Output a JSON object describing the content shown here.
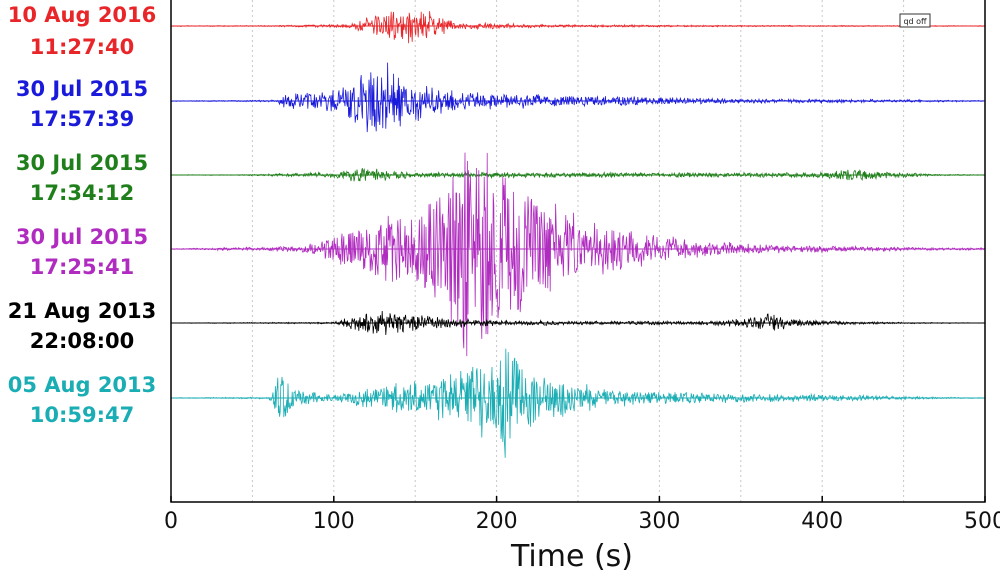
{
  "chart_data": {
    "type": "line",
    "xlabel": "Time (s)",
    "xlim": [
      0,
      500
    ],
    "x_ticks": [
      "0",
      "100",
      "200",
      "300",
      "400",
      "500"
    ],
    "grid": "vertical dotted at each 50 s",
    "annotation": "qd off",
    "series": [
      {
        "name_line1": "10 Aug 2016",
        "name_line2": "11:27:40",
        "color": "#e8262a",
        "envelope": [
          [
            0,
            0.4
          ],
          [
            60,
            0.6
          ],
          [
            110,
            2
          ],
          [
            125,
            14
          ],
          [
            145,
            23
          ],
          [
            160,
            16
          ],
          [
            175,
            4
          ],
          [
            230,
            1.5
          ],
          [
            350,
            0.8
          ],
          [
            500,
            0.4
          ]
        ]
      },
      {
        "name_line1": "30 Jul 2015",
        "name_line2": "17:57:39",
        "color": "#1a1adb",
        "envelope": [
          [
            0,
            0.3
          ],
          [
            65,
            1
          ],
          [
            70,
            8
          ],
          [
            100,
            12
          ],
          [
            120,
            35
          ],
          [
            130,
            44
          ],
          [
            150,
            22
          ],
          [
            180,
            10
          ],
          [
            250,
            6
          ],
          [
            350,
            2.5
          ],
          [
            450,
            1.5
          ],
          [
            500,
            0.5
          ]
        ]
      },
      {
        "name_line1": "30 Jul 2015",
        "name_line2": "17:34:12",
        "color": "#1f7f1a",
        "envelope": [
          [
            0,
            0.2
          ],
          [
            40,
            0.4
          ],
          [
            100,
            3
          ],
          [
            115,
            9
          ],
          [
            130,
            6
          ],
          [
            150,
            3
          ],
          [
            220,
            3
          ],
          [
            300,
            2.5
          ],
          [
            400,
            3
          ],
          [
            420,
            7
          ],
          [
            435,
            4
          ],
          [
            470,
            1
          ],
          [
            500,
            0.3
          ]
        ]
      },
      {
        "name_line1": "30 Jul 2015",
        "name_line2": "17:25:41",
        "color": "#b02bbf",
        "envelope": [
          [
            0,
            0.4
          ],
          [
            80,
            3
          ],
          [
            100,
            15
          ],
          [
            130,
            35
          ],
          [
            160,
            55
          ],
          [
            180,
            130
          ],
          [
            195,
            110
          ],
          [
            215,
            70
          ],
          [
            250,
            35
          ],
          [
            280,
            22
          ],
          [
            320,
            10
          ],
          [
            360,
            5
          ],
          [
            450,
            2
          ],
          [
            500,
            1
          ]
        ]
      },
      {
        "name_line1": "21 Aug 2013",
        "name_line2": "22:08:00",
        "color": "#000000",
        "envelope": [
          [
            0,
            0.2
          ],
          [
            100,
            1
          ],
          [
            108,
            6
          ],
          [
            130,
            13
          ],
          [
            155,
            9
          ],
          [
            180,
            4
          ],
          [
            250,
            2
          ],
          [
            330,
            2
          ],
          [
            350,
            5
          ],
          [
            370,
            11
          ],
          [
            385,
            4
          ],
          [
            420,
            1.5
          ],
          [
            470,
            0.5
          ],
          [
            500,
            0.2
          ]
        ]
      },
      {
        "name_line1": "05 Aug  2013",
        "name_line2": "10:59:47",
        "color": "#1aadb4",
        "envelope": [
          [
            0,
            0.3
          ],
          [
            60,
            1
          ],
          [
            68,
            30
          ],
          [
            78,
            8
          ],
          [
            100,
            4
          ],
          [
            130,
            14
          ],
          [
            160,
            22
          ],
          [
            180,
            30
          ],
          [
            195,
            45
          ],
          [
            205,
            70
          ],
          [
            215,
            35
          ],
          [
            240,
            20
          ],
          [
            270,
            10
          ],
          [
            320,
            6
          ],
          [
            420,
            3
          ],
          [
            470,
            1
          ],
          [
            500,
            0.4
          ]
        ]
      }
    ]
  }
}
